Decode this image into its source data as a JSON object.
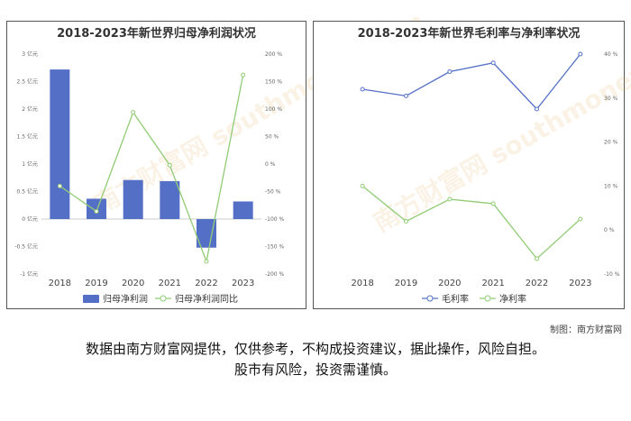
{
  "left_chart": {
    "title": "2018-2023年新世界归母净利润状况",
    "watermark": "南方财富网 southmoney.com"
  },
  "right_chart": {
    "title": "2018-2023年新世界毛利率与净利率状况",
    "watermark": "南方财富网 southmoney.com"
  },
  "colors": {
    "bar": "#5470c6",
    "green": "#91cc75",
    "blue": "#5470c6"
  },
  "chart_data": [
    {
      "type": "bar",
      "title": "2018-2023年新世界归母净利润状况",
      "categories": [
        "2018",
        "2019",
        "2020",
        "2021",
        "2022",
        "2023"
      ],
      "y_left_ticks": [
        "-1 亿元",
        "-0.5 亿元",
        "0 亿元",
        "0.5 亿元",
        "1 亿元",
        "1.5 亿元",
        "2 亿元",
        "2.5 亿元",
        "3 亿元"
      ],
      "y_right_ticks": [
        "-200 %",
        "-150 %",
        "-100 %",
        "-50 %",
        "0 %",
        "50 %",
        "100 %",
        "150 %",
        "200 %"
      ],
      "ylim_left": [
        -1,
        3
      ],
      "ylim_right": [
        -200,
        200
      ],
      "series": [
        {
          "name": "归母净利润",
          "type": "bar",
          "axis": "left",
          "unit": "亿元",
          "values": [
            2.72,
            0.37,
            0.71,
            0.69,
            -0.52,
            0.32
          ]
        },
        {
          "name": "归母净利润同比",
          "type": "line",
          "axis": "right",
          "unit": "%",
          "values": [
            -40,
            -86,
            94,
            -2,
            -177,
            162
          ]
        }
      ]
    },
    {
      "type": "line",
      "title": "2018-2023年新世界毛利率与净利率状况",
      "categories": [
        "2018",
        "2019",
        "2020",
        "2021",
        "2022",
        "2023"
      ],
      "y_right_ticks": [
        "-10 %",
        "0 %",
        "10 %",
        "20 %",
        "30 %",
        "40 %"
      ],
      "ylim": [
        -10,
        40
      ],
      "series": [
        {
          "name": "毛利率",
          "values": [
            32.0,
            30.5,
            36.0,
            38.0,
            27.5,
            40.0
          ]
        },
        {
          "name": "净利率",
          "values": [
            10.0,
            2.0,
            7.0,
            6.0,
            -6.5,
            2.5
          ]
        }
      ]
    }
  ],
  "footer": {
    "credit": "制图：南方财富网",
    "disclaimer_line1": "数据由南方财富网提供，仅供参考，不构成投资建议，据此操作，风险自担。",
    "disclaimer_line2": "股市有风险，投资需谨慎。"
  }
}
